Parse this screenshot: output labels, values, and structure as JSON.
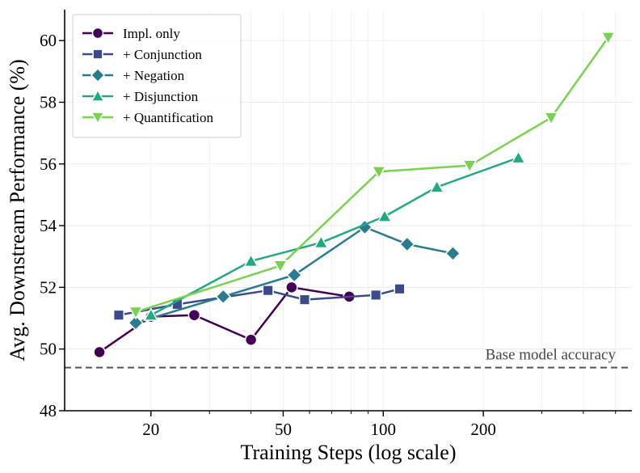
{
  "chart_data": {
    "type": "line",
    "xlabel": "Training Steps (log scale)",
    "ylabel": "Avg. Downstream Performance (%)",
    "xscale": "log",
    "xlim": [
      11,
      560
    ],
    "ylim": [
      48,
      61
    ],
    "xticks": [
      20,
      50,
      100,
      200
    ],
    "yticks": [
      48,
      50,
      52,
      54,
      56,
      58,
      60
    ],
    "grid": true,
    "legend_position": "top-left",
    "baseline": {
      "label": "Base model accuracy",
      "value": 49.4,
      "color": "#555555"
    },
    "series": [
      {
        "name": "Impl. only",
        "color": "#440154",
        "marker": "circle",
        "x": [
          14,
          20,
          27,
          40,
          53,
          79
        ],
        "y": [
          49.9,
          51.05,
          51.1,
          50.3,
          52.0,
          51.7
        ]
      },
      {
        "name": "+ Conjunction",
        "color": "#3b4a8a",
        "marker": "square",
        "x": [
          16,
          24,
          45,
          58,
          95,
          112
        ],
        "y": [
          51.1,
          51.45,
          51.9,
          51.6,
          51.75,
          51.95
        ]
      },
      {
        "name": "+ Negation",
        "color": "#2a7b8e",
        "marker": "diamond",
        "x": [
          18,
          33,
          54,
          88,
          118,
          162
        ],
        "y": [
          50.85,
          51.7,
          52.4,
          53.95,
          53.4,
          53.1
        ]
      },
      {
        "name": "+ Disjunction",
        "color": "#22a883",
        "marker": "triangle-up",
        "x": [
          20,
          40,
          65,
          101,
          145,
          255
        ],
        "y": [
          51.1,
          52.85,
          53.45,
          54.3,
          55.25,
          56.2
        ]
      },
      {
        "name": "+ Quantification",
        "color": "#7ad151",
        "marker": "triangle-down",
        "x": [
          18,
          49,
          97,
          182,
          320,
          475
        ],
        "y": [
          51.2,
          52.7,
          55.75,
          55.95,
          57.5,
          60.1
        ]
      }
    ]
  }
}
